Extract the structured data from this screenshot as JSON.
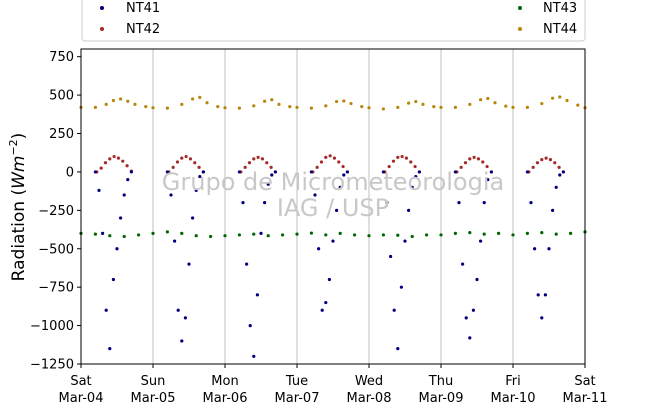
{
  "chart_data": {
    "type": "scatter",
    "title": "",
    "ylabel_main": "Radiation (",
    "ylabel_unit": "Wm",
    "ylabel_exp": "−2",
    "ylabel_close": ")",
    "ylim": [
      -1250,
      800
    ],
    "yticks": [
      -1250,
      -1000,
      -750,
      -500,
      -250,
      0,
      250,
      500,
      750
    ],
    "ytick_labels": [
      "−1250",
      "−1000",
      "−750",
      "−500",
      "−250",
      "0",
      "250",
      "500",
      "750"
    ],
    "xlim": [
      0,
      7
    ],
    "xticks": [
      {
        "x": 0,
        "day": "Sat",
        "date": "Mar-04"
      },
      {
        "x": 1,
        "day": "Sun",
        "date": "Mar-05"
      },
      {
        "x": 2,
        "day": "Mon",
        "date": "Mar-06"
      },
      {
        "x": 3,
        "day": "Tue",
        "date": "Mar-07"
      },
      {
        "x": 4,
        "day": "Wed",
        "date": "Mar-08"
      },
      {
        "x": 5,
        "day": "Thu",
        "date": "Mar-09"
      },
      {
        "x": 6,
        "day": "Fri",
        "date": "Mar-10"
      },
      {
        "x": 7,
        "day": "Sat",
        "date": "Mar-11"
      }
    ],
    "grid": "vertical",
    "watermark": [
      "Grupo de Micrometeorologia",
      "IAG / USP"
    ],
    "legend": {
      "placement": "top",
      "entries": [
        {
          "name": "NT41",
          "color": "#00007f"
        },
        {
          "name": "NT42",
          "color": "#a52a2a"
        },
        {
          "name": "NT43",
          "color": "#006400"
        },
        {
          "name": "NT44",
          "color": "#b8860b"
        }
      ]
    },
    "series": [
      {
        "name": "NT44",
        "color": "#b8860b",
        "x": [
          0.0,
          0.2,
          0.35,
          0.45,
          0.55,
          0.65,
          0.75,
          0.9,
          1.0,
          1.2,
          1.4,
          1.55,
          1.65,
          1.75,
          1.9,
          2.0,
          2.2,
          2.4,
          2.55,
          2.65,
          2.75,
          2.9,
          3.0,
          3.2,
          3.4,
          3.55,
          3.65,
          3.75,
          3.9,
          4.0,
          4.2,
          4.4,
          4.55,
          4.65,
          4.75,
          4.9,
          5.0,
          5.2,
          5.4,
          5.55,
          5.65,
          5.75,
          5.9,
          6.0,
          6.2,
          6.4,
          6.55,
          6.65,
          6.75,
          6.9,
          7.0
        ],
        "y": [
          420,
          420,
          440,
          465,
          475,
          460,
          440,
          425,
          418,
          415,
          440,
          475,
          485,
          450,
          425,
          418,
          415,
          430,
          460,
          470,
          440,
          425,
          420,
          415,
          430,
          458,
          462,
          445,
          425,
          418,
          410,
          420,
          448,
          458,
          440,
          425,
          420,
          420,
          440,
          470,
          478,
          450,
          428,
          420,
          420,
          445,
          480,
          488,
          465,
          435,
          418
        ]
      },
      {
        "name": "NT43",
        "color": "#006400",
        "x": [
          0.0,
          0.2,
          0.4,
          0.6,
          0.8,
          1.0,
          1.2,
          1.4,
          1.6,
          1.8,
          2.0,
          2.2,
          2.4,
          2.6,
          2.8,
          3.0,
          3.2,
          3.4,
          3.6,
          3.8,
          4.0,
          4.2,
          4.4,
          4.6,
          4.8,
          5.0,
          5.2,
          5.4,
          5.6,
          5.8,
          6.0,
          6.2,
          6.4,
          6.6,
          6.8,
          7.0
        ],
        "y": [
          -400,
          -405,
          -415,
          -420,
          -410,
          -400,
          -390,
          -400,
          -415,
          -420,
          -415,
          -410,
          -405,
          -415,
          -410,
          -405,
          -398,
          -410,
          -400,
          -410,
          -415,
          -410,
          -412,
          -420,
          -410,
          -410,
          -400,
          -395,
          -405,
          -400,
          -410,
          -400,
          -395,
          -405,
          -400,
          -390
        ]
      },
      {
        "name": "NT42",
        "color": "#a52a2a",
        "x": [
          0.22,
          0.28,
          0.34,
          0.4,
          0.46,
          0.52,
          0.58,
          0.64,
          0.7,
          1.22,
          1.28,
          1.34,
          1.4,
          1.46,
          1.52,
          1.58,
          1.64,
          1.7,
          2.22,
          2.28,
          2.34,
          2.4,
          2.46,
          2.52,
          2.58,
          2.64,
          2.7,
          3.22,
          3.28,
          3.34,
          3.4,
          3.46,
          3.52,
          3.58,
          3.64,
          3.7,
          4.22,
          4.28,
          4.34,
          4.4,
          4.46,
          4.52,
          4.58,
          4.64,
          4.7,
          5.22,
          5.28,
          5.34,
          5.4,
          5.46,
          5.52,
          5.58,
          5.64,
          5.7,
          6.22,
          6.28,
          6.34,
          6.4,
          6.46,
          6.52,
          6.58,
          6.64,
          6.7
        ],
        "y": [
          0,
          25,
          60,
          85,
          100,
          90,
          70,
          40,
          5,
          0,
          30,
          65,
          90,
          100,
          85,
          60,
          30,
          0,
          0,
          30,
          60,
          85,
          95,
          85,
          60,
          30,
          0,
          0,
          30,
          65,
          95,
          105,
          90,
          65,
          35,
          0,
          0,
          35,
          70,
          95,
          100,
          90,
          65,
          35,
          0,
          0,
          30,
          60,
          85,
          95,
          85,
          65,
          35,
          0,
          0,
          30,
          60,
          80,
          90,
          80,
          60,
          30,
          0
        ]
      },
      {
        "name": "NT41",
        "color": "#00007f",
        "x": [
          0.2,
          0.25,
          0.3,
          0.35,
          0.4,
          0.45,
          0.5,
          0.55,
          0.6,
          0.65,
          0.7,
          1.2,
          1.25,
          1.3,
          1.35,
          1.4,
          1.45,
          1.5,
          1.55,
          1.6,
          1.65,
          1.7,
          2.2,
          2.25,
          2.3,
          2.35,
          2.4,
          2.45,
          2.5,
          2.55,
          2.6,
          2.65,
          2.7,
          3.2,
          3.25,
          3.3,
          3.35,
          3.4,
          3.45,
          3.5,
          3.55,
          3.6,
          3.65,
          3.7,
          4.2,
          4.25,
          4.3,
          4.35,
          4.4,
          4.45,
          4.5,
          4.55,
          4.6,
          4.65,
          4.7,
          5.2,
          5.25,
          5.3,
          5.35,
          5.4,
          5.45,
          5.5,
          5.55,
          5.6,
          5.65,
          5.7,
          6.2,
          6.25,
          6.3,
          6.35,
          6.4,
          6.45,
          6.5,
          6.55,
          6.6,
          6.65,
          6.7
        ],
        "y": [
          0,
          -120,
          -400,
          -900,
          -1150,
          -700,
          -500,
          -300,
          -150,
          -50,
          0,
          0,
          -150,
          -450,
          -900,
          -1100,
          -950,
          -600,
          -300,
          -120,
          -30,
          0,
          0,
          -200,
          -600,
          -1000,
          -1200,
          -800,
          -400,
          -200,
          -80,
          -20,
          0,
          0,
          -150,
          -500,
          -900,
          -850,
          -700,
          -450,
          -250,
          -100,
          -20,
          0,
          0,
          -200,
          -550,
          -900,
          -1150,
          -750,
          -450,
          -250,
          -100,
          -30,
          0,
          0,
          -200,
          -600,
          -950,
          -1080,
          -900,
          -700,
          -450,
          -200,
          -50,
          0,
          0,
          -200,
          -500,
          -800,
          -950,
          -800,
          -500,
          -250,
          -100,
          -20,
          0
        ]
      }
    ]
  }
}
